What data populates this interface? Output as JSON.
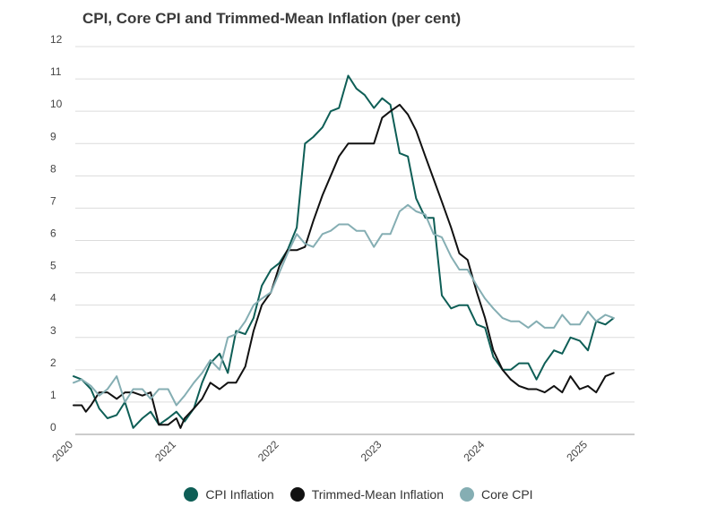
{
  "chart_data": {
    "type": "line",
    "title": "CPI, Core CPI and Trimmed-Mean Inflation (per cent)",
    "ylim": [
      0,
      12
    ],
    "yticks": [
      0,
      1,
      2,
      3,
      4,
      5,
      6,
      7,
      8,
      9,
      10,
      11,
      12
    ],
    "xlim": [
      2020.0,
      2025.5
    ],
    "xticks": [
      2020,
      2021,
      2022,
      2023,
      2024,
      2025
    ],
    "grid": true,
    "legend_position": "bottom-center",
    "series": [
      {
        "name": "CPI Inflation",
        "color": "#0e5e56",
        "points": [
          [
            2020.0,
            1.8
          ],
          [
            2020.08,
            1.7
          ],
          [
            2020.17,
            1.4
          ],
          [
            2020.25,
            0.8
          ],
          [
            2020.33,
            0.5
          ],
          [
            2020.42,
            0.6
          ],
          [
            2020.5,
            1.0
          ],
          [
            2020.58,
            0.2
          ],
          [
            2020.67,
            0.5
          ],
          [
            2020.75,
            0.7
          ],
          [
            2020.83,
            0.3
          ],
          [
            2020.92,
            0.5
          ],
          [
            2021.0,
            0.7
          ],
          [
            2021.08,
            0.4
          ],
          [
            2021.17,
            0.8
          ],
          [
            2021.25,
            1.6
          ],
          [
            2021.33,
            2.2
          ],
          [
            2021.42,
            2.5
          ],
          [
            2021.5,
            1.9
          ],
          [
            2021.58,
            3.2
          ],
          [
            2021.67,
            3.1
          ],
          [
            2021.75,
            3.6
          ],
          [
            2021.83,
            4.6
          ],
          [
            2021.92,
            5.1
          ],
          [
            2022.0,
            5.3
          ],
          [
            2022.08,
            5.7
          ],
          [
            2022.17,
            6.4
          ],
          [
            2022.25,
            9.0
          ],
          [
            2022.33,
            9.2
          ],
          [
            2022.42,
            9.5
          ],
          [
            2022.5,
            10.0
          ],
          [
            2022.58,
            10.1
          ],
          [
            2022.67,
            11.1
          ],
          [
            2022.75,
            10.7
          ],
          [
            2022.83,
            10.5
          ],
          [
            2022.92,
            10.1
          ],
          [
            2023.0,
            10.4
          ],
          [
            2023.08,
            10.2
          ],
          [
            2023.17,
            8.7
          ],
          [
            2023.25,
            8.6
          ],
          [
            2023.33,
            7.3
          ],
          [
            2023.42,
            6.7
          ],
          [
            2023.5,
            6.7
          ],
          [
            2023.58,
            4.3
          ],
          [
            2023.67,
            3.9
          ],
          [
            2023.75,
            4.0
          ],
          [
            2023.83,
            4.0
          ],
          [
            2023.92,
            3.4
          ],
          [
            2024.0,
            3.3
          ],
          [
            2024.08,
            2.4
          ],
          [
            2024.17,
            2.0
          ],
          [
            2024.25,
            2.0
          ],
          [
            2024.33,
            2.2
          ],
          [
            2024.42,
            2.2
          ],
          [
            2024.5,
            1.7
          ],
          [
            2024.58,
            2.2
          ],
          [
            2024.67,
            2.6
          ],
          [
            2024.75,
            2.5
          ],
          [
            2024.83,
            3.0
          ],
          [
            2024.92,
            2.9
          ],
          [
            2025.0,
            2.6
          ],
          [
            2025.08,
            3.5
          ],
          [
            2025.17,
            3.4
          ],
          [
            2025.25,
            3.6
          ]
        ]
      },
      {
        "name": "Trimmed-Mean Inflation",
        "color": "#111111",
        "points": [
          [
            2020.0,
            0.9
          ],
          [
            2020.08,
            0.9
          ],
          [
            2020.12,
            0.7
          ],
          [
            2020.17,
            0.9
          ],
          [
            2020.25,
            1.3
          ],
          [
            2020.33,
            1.3
          ],
          [
            2020.42,
            1.1
          ],
          [
            2020.5,
            1.3
          ],
          [
            2020.58,
            1.3
          ],
          [
            2020.67,
            1.2
          ],
          [
            2020.75,
            1.3
          ],
          [
            2020.83,
            0.3
          ],
          [
            2020.92,
            0.3
          ],
          [
            2021.0,
            0.5
          ],
          [
            2021.04,
            0.2
          ],
          [
            2021.08,
            0.5
          ],
          [
            2021.17,
            0.8
          ],
          [
            2021.25,
            1.1
          ],
          [
            2021.33,
            1.6
          ],
          [
            2021.42,
            1.4
          ],
          [
            2021.5,
            1.6
          ],
          [
            2021.58,
            1.6
          ],
          [
            2021.67,
            2.1
          ],
          [
            2021.75,
            3.2
          ],
          [
            2021.83,
            4.0
          ],
          [
            2021.92,
            4.4
          ],
          [
            2022.0,
            5.2
          ],
          [
            2022.08,
            5.7
          ],
          [
            2022.17,
            5.7
          ],
          [
            2022.25,
            5.8
          ],
          [
            2022.33,
            6.6
          ],
          [
            2022.42,
            7.4
          ],
          [
            2022.5,
            8.0
          ],
          [
            2022.58,
            8.6
          ],
          [
            2022.67,
            9.0
          ],
          [
            2022.75,
            9.0
          ],
          [
            2022.83,
            9.0
          ],
          [
            2022.92,
            9.0
          ],
          [
            2023.0,
            9.8
          ],
          [
            2023.08,
            10.0
          ],
          [
            2023.17,
            10.2
          ],
          [
            2023.25,
            9.9
          ],
          [
            2023.33,
            9.4
          ],
          [
            2023.42,
            8.6
          ],
          [
            2023.5,
            7.9
          ],
          [
            2023.58,
            7.2
          ],
          [
            2023.67,
            6.4
          ],
          [
            2023.75,
            5.6
          ],
          [
            2023.83,
            5.4
          ],
          [
            2023.92,
            4.4
          ],
          [
            2024.0,
            3.6
          ],
          [
            2024.08,
            2.6
          ],
          [
            2024.17,
            2.0
          ],
          [
            2024.25,
            1.7
          ],
          [
            2024.33,
            1.5
          ],
          [
            2024.42,
            1.4
          ],
          [
            2024.5,
            1.4
          ],
          [
            2024.58,
            1.3
          ],
          [
            2024.67,
            1.5
          ],
          [
            2024.75,
            1.3
          ],
          [
            2024.83,
            1.8
          ],
          [
            2024.92,
            1.4
          ],
          [
            2025.0,
            1.5
          ],
          [
            2025.08,
            1.3
          ],
          [
            2025.17,
            1.8
          ],
          [
            2025.25,
            1.9
          ]
        ]
      },
      {
        "name": "Core CPI",
        "color": "#85aeb3",
        "points": [
          [
            2020.0,
            1.6
          ],
          [
            2020.08,
            1.7
          ],
          [
            2020.17,
            1.5
          ],
          [
            2020.25,
            1.2
          ],
          [
            2020.33,
            1.4
          ],
          [
            2020.42,
            1.8
          ],
          [
            2020.5,
            1.0
          ],
          [
            2020.58,
            1.4
          ],
          [
            2020.67,
            1.4
          ],
          [
            2020.75,
            1.1
          ],
          [
            2020.83,
            1.4
          ],
          [
            2020.92,
            1.4
          ],
          [
            2021.0,
            0.9
          ],
          [
            2021.08,
            1.2
          ],
          [
            2021.17,
            1.6
          ],
          [
            2021.25,
            1.9
          ],
          [
            2021.33,
            2.3
          ],
          [
            2021.42,
            2.0
          ],
          [
            2021.5,
            3.0
          ],
          [
            2021.58,
            3.1
          ],
          [
            2021.67,
            3.5
          ],
          [
            2021.75,
            4.0
          ],
          [
            2021.83,
            4.2
          ],
          [
            2021.92,
            4.4
          ],
          [
            2022.0,
            5.0
          ],
          [
            2022.08,
            5.6
          ],
          [
            2022.17,
            6.2
          ],
          [
            2022.25,
            5.9
          ],
          [
            2022.33,
            5.8
          ],
          [
            2022.42,
            6.2
          ],
          [
            2022.5,
            6.3
          ],
          [
            2022.58,
            6.5
          ],
          [
            2022.67,
            6.5
          ],
          [
            2022.75,
            6.3
          ],
          [
            2022.83,
            6.3
          ],
          [
            2022.92,
            5.8
          ],
          [
            2023.0,
            6.2
          ],
          [
            2023.08,
            6.2
          ],
          [
            2023.17,
            6.9
          ],
          [
            2023.25,
            7.1
          ],
          [
            2023.33,
            6.9
          ],
          [
            2023.42,
            6.8
          ],
          [
            2023.5,
            6.2
          ],
          [
            2023.58,
            6.1
          ],
          [
            2023.67,
            5.5
          ],
          [
            2023.75,
            5.1
          ],
          [
            2023.83,
            5.1
          ],
          [
            2023.92,
            4.6
          ],
          [
            2024.0,
            4.2
          ],
          [
            2024.08,
            3.9
          ],
          [
            2024.17,
            3.6
          ],
          [
            2024.25,
            3.5
          ],
          [
            2024.33,
            3.5
          ],
          [
            2024.42,
            3.3
          ],
          [
            2024.5,
            3.5
          ],
          [
            2024.58,
            3.3
          ],
          [
            2024.67,
            3.3
          ],
          [
            2024.75,
            3.7
          ],
          [
            2024.83,
            3.4
          ],
          [
            2024.92,
            3.4
          ],
          [
            2025.0,
            3.8
          ],
          [
            2025.08,
            3.5
          ],
          [
            2025.17,
            3.7
          ],
          [
            2025.25,
            3.6
          ]
        ]
      }
    ]
  }
}
